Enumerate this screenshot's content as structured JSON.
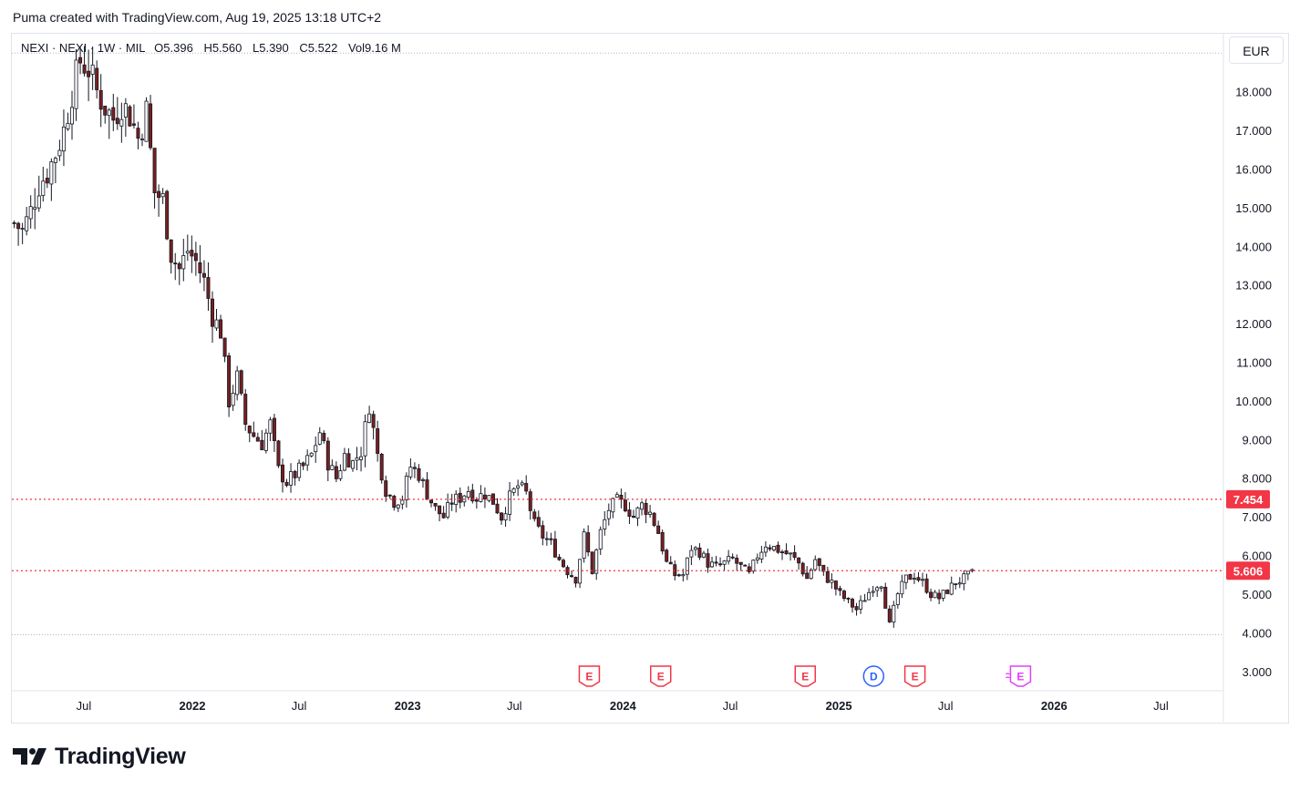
{
  "header": {
    "attribution": "Puma created with TradingView.com, Aug 19, 2025 13:18 UTC+2"
  },
  "legend": {
    "symbol": "NEXI · NEXI · 1W · MIL",
    "open_label": "O",
    "open": "5.396",
    "high_label": "H",
    "high": "5.560",
    "low_label": "L",
    "low": "5.390",
    "close_label": "C",
    "close": "5.522",
    "vol_label": "Vol",
    "vol": "9.16 M"
  },
  "currency": "EUR",
  "brand": {
    "name": "TradingView"
  },
  "colors": {
    "up": "#089981",
    "down": "#f23645",
    "candle_body_up": "#ffffff",
    "candle_body_down": "#7a1f1f",
    "wick": "#131722",
    "level_line": "#f23645",
    "earnings_marker": "#f23645",
    "dividend_marker": "#2962ff",
    "future_earnings_marker": "#e040fb"
  },
  "chart_data": {
    "type": "candlestick",
    "interval": "1W",
    "y_range": [
      2.5,
      19.5
    ],
    "y_ticks": [
      "18.000",
      "17.000",
      "16.000",
      "15.000",
      "14.000",
      "13.000",
      "12.000",
      "11.000",
      "10.000",
      "9.000",
      "8.000",
      "7.000",
      "6.000",
      "5.000",
      "4.000",
      "3.000"
    ],
    "x_ticks": [
      {
        "label": "Jul",
        "date": "2021-07-01",
        "bold": false
      },
      {
        "label": "2022",
        "date": "2022-01-01",
        "bold": true
      },
      {
        "label": "Jul",
        "date": "2022-07-01",
        "bold": false
      },
      {
        "label": "2023",
        "date": "2023-01-01",
        "bold": true
      },
      {
        "label": "Jul",
        "date": "2023-07-01",
        "bold": false
      },
      {
        "label": "2024",
        "date": "2024-01-01",
        "bold": true
      },
      {
        "label": "Jul",
        "date": "2024-07-01",
        "bold": false
      },
      {
        "label": "2025",
        "date": "2025-01-01",
        "bold": true
      },
      {
        "label": "Jul",
        "date": "2025-07-01",
        "bold": false
      },
      {
        "label": "2026",
        "date": "2026-01-01",
        "bold": true
      },
      {
        "label": "Jul",
        "date": "2026-07-01",
        "bold": false
      }
    ],
    "x_range": [
      "2021-03-01",
      "2026-10-15"
    ],
    "horizontal_levels": [
      {
        "value": 7.454,
        "label": "7.454"
      },
      {
        "value": 5.606,
        "label": "5.606"
      }
    ],
    "dotted_top": 19.0,
    "dotted_bottom": 3.95,
    "event_markers": [
      {
        "date": "2023-11-05",
        "letter": "E",
        "kind": "earnings"
      },
      {
        "date": "2024-03-05",
        "letter": "E",
        "kind": "earnings"
      },
      {
        "date": "2024-11-05",
        "letter": "E",
        "kind": "earnings"
      },
      {
        "date": "2025-03-01",
        "letter": "D",
        "kind": "dividend"
      },
      {
        "date": "2025-05-10",
        "letter": "E",
        "kind": "earnings"
      },
      {
        "date": "2025-11-05",
        "letter": "E",
        "kind": "future-earnings"
      }
    ],
    "candles_close_path": [
      [
        "2021-03-05",
        14.6
      ],
      [
        "2021-03-19",
        14.4
      ],
      [
        "2021-04-02",
        14.9
      ],
      [
        "2021-04-16",
        15.6
      ],
      [
        "2021-04-30",
        15.9
      ],
      [
        "2021-05-14",
        16.4
      ],
      [
        "2021-05-28",
        17.0
      ],
      [
        "2021-06-11",
        18.0
      ],
      [
        "2021-06-25",
        18.8
      ],
      [
        "2021-07-09",
        18.6
      ],
      [
        "2021-07-23",
        18.0
      ],
      [
        "2021-08-06",
        17.6
      ],
      [
        "2021-08-20",
        17.3
      ],
      [
        "2021-09-03",
        17.7
      ],
      [
        "2021-09-17",
        17.4
      ],
      [
        "2021-10-01",
        16.8
      ],
      [
        "2021-10-15",
        17.5
      ],
      [
        "2021-10-29",
        15.4
      ],
      [
        "2021-11-12",
        15.2
      ],
      [
        "2021-11-26",
        13.8
      ],
      [
        "2021-12-10",
        13.4
      ],
      [
        "2021-12-24",
        13.9
      ],
      [
        "2022-01-07",
        13.6
      ],
      [
        "2022-01-21",
        13.1
      ],
      [
        "2022-02-04",
        12.2
      ],
      [
        "2022-02-18",
        11.8
      ],
      [
        "2022-03-04",
        10.0
      ],
      [
        "2022-03-18",
        10.6
      ],
      [
        "2022-04-01",
        9.4
      ],
      [
        "2022-04-15",
        9.1
      ],
      [
        "2022-04-29",
        8.9
      ],
      [
        "2022-05-13",
        9.4
      ],
      [
        "2022-05-27",
        8.2
      ],
      [
        "2022-06-10",
        7.9
      ],
      [
        "2022-06-24",
        8.1
      ],
      [
        "2022-07-08",
        8.3
      ],
      [
        "2022-07-22",
        8.6
      ],
      [
        "2022-08-05",
        9.2
      ],
      [
        "2022-08-19",
        8.4
      ],
      [
        "2022-09-02",
        8.0
      ],
      [
        "2022-09-16",
        8.6
      ],
      [
        "2022-09-30",
        8.4
      ],
      [
        "2022-10-14",
        8.7
      ],
      [
        "2022-10-28",
        9.9
      ],
      [
        "2022-11-11",
        8.6
      ],
      [
        "2022-11-25",
        7.7
      ],
      [
        "2022-12-09",
        7.4
      ],
      [
        "2022-12-23",
        7.5
      ],
      [
        "2023-01-06",
        8.3
      ],
      [
        "2023-01-20",
        8.1
      ],
      [
        "2023-02-03",
        7.6
      ],
      [
        "2023-02-17",
        7.2
      ],
      [
        "2023-03-03",
        7.0
      ],
      [
        "2023-03-17",
        7.4
      ],
      [
        "2023-03-31",
        7.5
      ],
      [
        "2023-04-14",
        7.7
      ],
      [
        "2023-04-28",
        7.5
      ],
      [
        "2023-05-12",
        7.6
      ],
      [
        "2023-05-26",
        7.4
      ],
      [
        "2023-06-09",
        7.0
      ],
      [
        "2023-06-23",
        7.5
      ],
      [
        "2023-07-07",
        7.8
      ],
      [
        "2023-07-21",
        7.6
      ],
      [
        "2023-08-04",
        6.8
      ],
      [
        "2023-08-18",
        6.5
      ],
      [
        "2023-09-01",
        6.3
      ],
      [
        "2023-09-15",
        5.9
      ],
      [
        "2023-09-29",
        5.6
      ],
      [
        "2023-10-13",
        5.4
      ],
      [
        "2023-10-27",
        6.5
      ],
      [
        "2023-11-10",
        5.6
      ],
      [
        "2023-11-24",
        6.6
      ],
      [
        "2023-12-08",
        7.2
      ],
      [
        "2023-12-22",
        7.4
      ],
      [
        "2024-01-05",
        7.3
      ],
      [
        "2024-01-19",
        7.0
      ],
      [
        "2024-02-02",
        7.3
      ],
      [
        "2024-02-16",
        7.1
      ],
      [
        "2024-03-01",
        6.6
      ],
      [
        "2024-03-15",
        5.8
      ],
      [
        "2024-03-29",
        5.5
      ],
      [
        "2024-04-12",
        5.5
      ],
      [
        "2024-04-26",
        6.2
      ],
      [
        "2024-05-10",
        6.1
      ],
      [
        "2024-05-24",
        5.8
      ],
      [
        "2024-06-07",
        5.7
      ],
      [
        "2024-06-21",
        5.8
      ],
      [
        "2024-07-05",
        5.9
      ],
      [
        "2024-07-19",
        5.7
      ],
      [
        "2024-08-02",
        5.5
      ],
      [
        "2024-08-16",
        6.0
      ],
      [
        "2024-08-30",
        6.3
      ],
      [
        "2024-09-13",
        6.2
      ],
      [
        "2024-09-27",
        6.1
      ],
      [
        "2024-10-11",
        6.0
      ],
      [
        "2024-10-25",
        5.8
      ],
      [
        "2024-11-08",
        5.4
      ],
      [
        "2024-11-22",
        5.9
      ],
      [
        "2024-12-06",
        5.5
      ],
      [
        "2024-12-20",
        5.3
      ],
      [
        "2025-01-03",
        5.0
      ],
      [
        "2025-01-17",
        4.8
      ],
      [
        "2025-01-31",
        4.6
      ],
      [
        "2025-02-14",
        4.9
      ],
      [
        "2025-02-28",
        5.2
      ],
      [
        "2025-03-14",
        5.3
      ],
      [
        "2025-03-28",
        4.2
      ],
      [
        "2025-04-11",
        5.0
      ],
      [
        "2025-04-25",
        5.4
      ],
      [
        "2025-05-09",
        5.5
      ],
      [
        "2025-05-23",
        5.3
      ],
      [
        "2025-06-06",
        5.0
      ],
      [
        "2025-06-20",
        4.9
      ],
      [
        "2025-07-04",
        5.1
      ],
      [
        "2025-07-18",
        5.3
      ],
      [
        "2025-08-01",
        5.4
      ],
      [
        "2025-08-15",
        5.522
      ]
    ]
  }
}
